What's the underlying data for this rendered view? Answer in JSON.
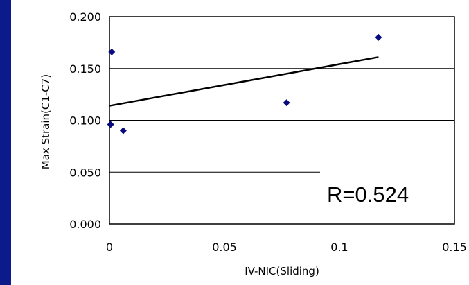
{
  "chart_data": {
    "type": "scatter",
    "title": "",
    "xlabel": "IV-NIC(Sliding)",
    "ylabel": "Max Strain(C1-C7)",
    "xlim": [
      0,
      0.15
    ],
    "ylim": [
      0,
      0.2
    ],
    "x_ticks": [
      "0",
      "0.05",
      "0.1",
      "0.15"
    ],
    "y_ticks": [
      "0.000",
      "0.050",
      "0.100",
      "0.150",
      "0.200"
    ],
    "grid": "horizontal",
    "series": [
      {
        "points": [
          {
            "x": 0.001,
            "y": 0.166
          },
          {
            "x": 0.0005,
            "y": 0.096
          },
          {
            "x": 0.006,
            "y": 0.09
          },
          {
            "x": 0.077,
            "y": 0.117
          },
          {
            "x": 0.117,
            "y": 0.18
          }
        ],
        "color": "#0a0a80",
        "marker": "diamond"
      }
    ],
    "trendline": {
      "x": [
        0,
        0.117
      ],
      "y": [
        0.114,
        0.161
      ],
      "color": "#000000"
    },
    "annotation": "R=0.524",
    "colors": {
      "background": "#0d1a8c",
      "plot": "#ffffff"
    }
  }
}
